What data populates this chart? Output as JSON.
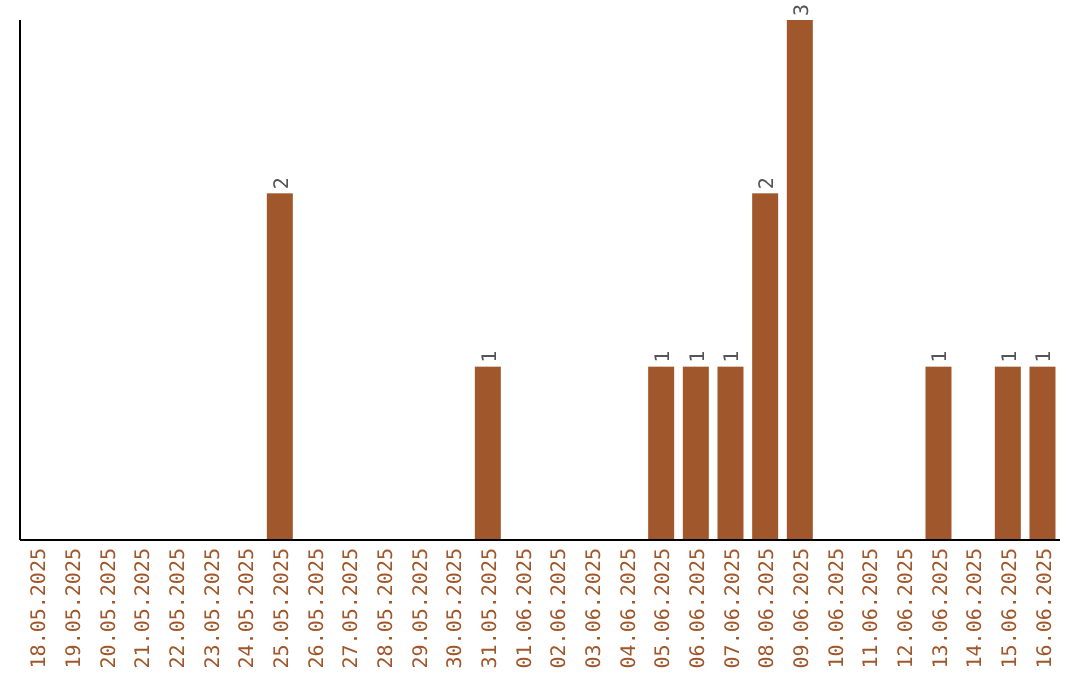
{
  "chart_data": {
    "type": "bar",
    "categories": [
      "18.05.2025",
      "19.05.2025",
      "20.05.2025",
      "21.05.2025",
      "22.05.2025",
      "23.05.2025",
      "24.05.2025",
      "25.05.2025",
      "26.05.2025",
      "27.05.2025",
      "28.05.2025",
      "29.05.2025",
      "30.05.2025",
      "31.05.2025",
      "01.06.2025",
      "02.06.2025",
      "03.06.2025",
      "04.06.2025",
      "05.06.2025",
      "06.06.2025",
      "07.06.2025",
      "08.06.2025",
      "09.06.2025",
      "10.06.2025",
      "11.06.2025",
      "12.06.2025",
      "13.06.2025",
      "14.06.2025",
      "15.06.2025",
      "16.06.2025"
    ],
    "values": [
      0,
      0,
      0,
      0,
      0,
      0,
      0,
      2,
      0,
      0,
      0,
      0,
      0,
      1,
      0,
      0,
      0,
      0,
      1,
      1,
      1,
      2,
      3,
      0,
      0,
      0,
      1,
      0,
      1,
      1
    ],
    "value_labels": [
      null,
      null,
      null,
      null,
      null,
      null,
      null,
      "2",
      null,
      null,
      null,
      null,
      null,
      "1",
      null,
      null,
      null,
      null,
      "1",
      "1",
      "1",
      "2",
      "3",
      null,
      null,
      null,
      "1",
      null,
      "1",
      "1"
    ],
    "color": "#a0572b",
    "grid": false,
    "legend": false
  }
}
